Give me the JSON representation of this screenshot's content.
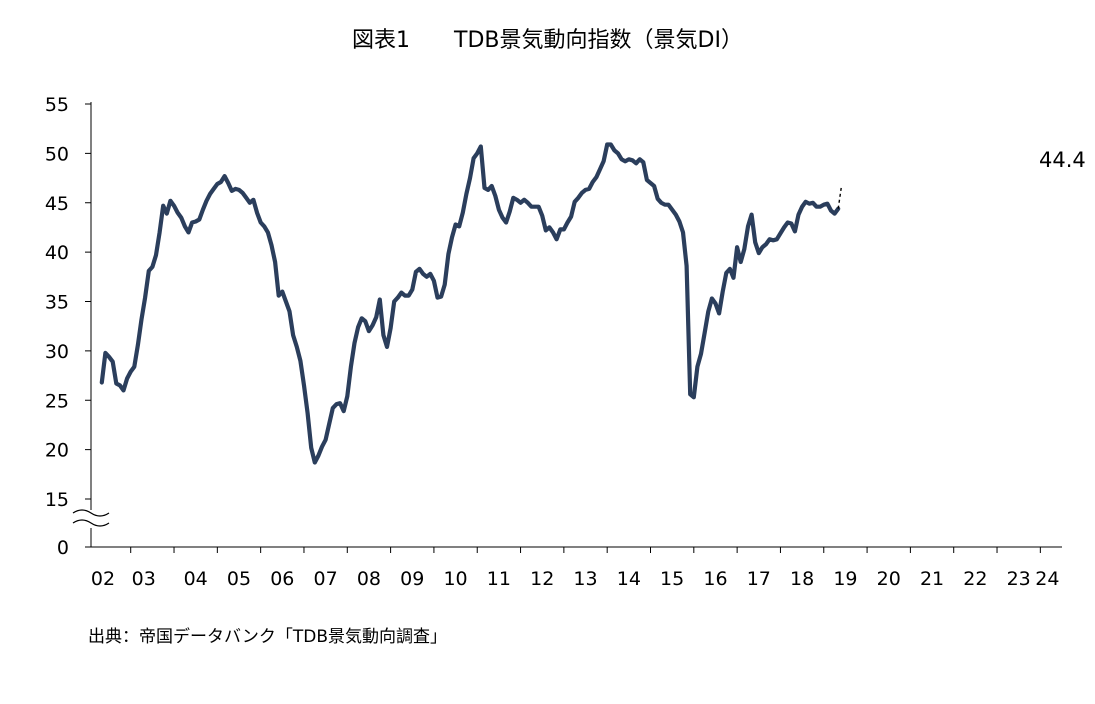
{
  "chart_data": {
    "type": "line",
    "title": "図表1　　TDB景気動向指数（景気DI）",
    "source": "出典：帝国データバンク「TDB景気動向調査」",
    "ylim": [
      15,
      55
    ],
    "y_ticks": [
      "55",
      "50",
      "45",
      "40",
      "35",
      "30",
      "25",
      "20",
      "15",
      "0"
    ],
    "axis_break": true,
    "x_tick_labels": [
      "02",
      "03",
      "04",
      "05",
      "06",
      "07",
      "08",
      "09",
      "10",
      "11",
      "12",
      "13",
      "14",
      "15",
      "16",
      "17",
      "18",
      "19",
      "20",
      "21",
      "22",
      "23",
      "24"
    ],
    "grid": false,
    "line_color": "#2b3e5c",
    "series": [
      {
        "x_start": "2002-05",
        "frequency": "monthly",
        "values": [
          26.8,
          29.8,
          29.4,
          28.9,
          26.7,
          26.5,
          26.0,
          27.2,
          27.9,
          28.4,
          30.6,
          33.2,
          35.4,
          38.1,
          38.5,
          39.7,
          42.0,
          44.7,
          43.9,
          45.2,
          44.7,
          44.0,
          43.5,
          42.6,
          42.0,
          43.0,
          43.1,
          43.3,
          44.3,
          45.2,
          45.9,
          46.4,
          46.9,
          47.1,
          47.7,
          47.0,
          46.2,
          46.4,
          46.3,
          46.0,
          45.5,
          45.0,
          45.3,
          44.0,
          43.0,
          42.6,
          42.0,
          40.7,
          39.0,
          35.6,
          36.0,
          35.0,
          34.0,
          31.6,
          30.4,
          29.0,
          26.5,
          23.7,
          20.2,
          18.7,
          19.4,
          20.3,
          21.0,
          22.6,
          24.2,
          24.6,
          24.7,
          23.9,
          25.4,
          28.4,
          30.8,
          32.4,
          33.3,
          33.0,
          32.0,
          32.6,
          33.4,
          35.2,
          31.6,
          30.4,
          32.3,
          35.0,
          35.4,
          35.9,
          35.6,
          35.6,
          36.2,
          38.0,
          38.3,
          37.8,
          37.5,
          37.8,
          37.1,
          35.4,
          35.5,
          36.7,
          39.8,
          41.5,
          42.8,
          42.6,
          44.0,
          45.9,
          47.5,
          49.5,
          50.0,
          50.7,
          46.5,
          46.3,
          46.7,
          45.7,
          44.3,
          43.5,
          43.0,
          44.1,
          45.5,
          45.3,
          45.0,
          45.3,
          45.0,
          44.6,
          44.6,
          44.6,
          43.7,
          42.2,
          42.5,
          42.0,
          41.3,
          42.3,
          42.3,
          43.0,
          43.6,
          45.1,
          45.5,
          46.0,
          46.3,
          46.4,
          47.1,
          47.6,
          48.4,
          49.2,
          50.9,
          50.9,
          50.3,
          50.0,
          49.4,
          49.2,
          49.4,
          49.3,
          49.0,
          49.4,
          49.1,
          47.3,
          47.0,
          46.7,
          45.4,
          45.0,
          44.8,
          44.8,
          44.3,
          43.8,
          43.1,
          42.0,
          38.6,
          25.6,
          25.3,
          28.4,
          29.7,
          31.8,
          34.0,
          35.3,
          34.8,
          33.8,
          36.0,
          37.9,
          38.3,
          37.4,
          40.5,
          39.0,
          40.3,
          42.6,
          43.8,
          41.0,
          39.9,
          40.5,
          40.8,
          41.3,
          41.2,
          41.3,
          41.9,
          42.5,
          43.0,
          42.9,
          42.1,
          43.8,
          44.6,
          45.1,
          44.9,
          45.0,
          44.6,
          44.6,
          44.8,
          44.9,
          44.2,
          43.9,
          44.4
        ]
      }
    ],
    "forecast_segment": [
      44.4,
      46.5
    ],
    "annotation": {
      "text": "44.4",
      "value": 44.4
    }
  }
}
